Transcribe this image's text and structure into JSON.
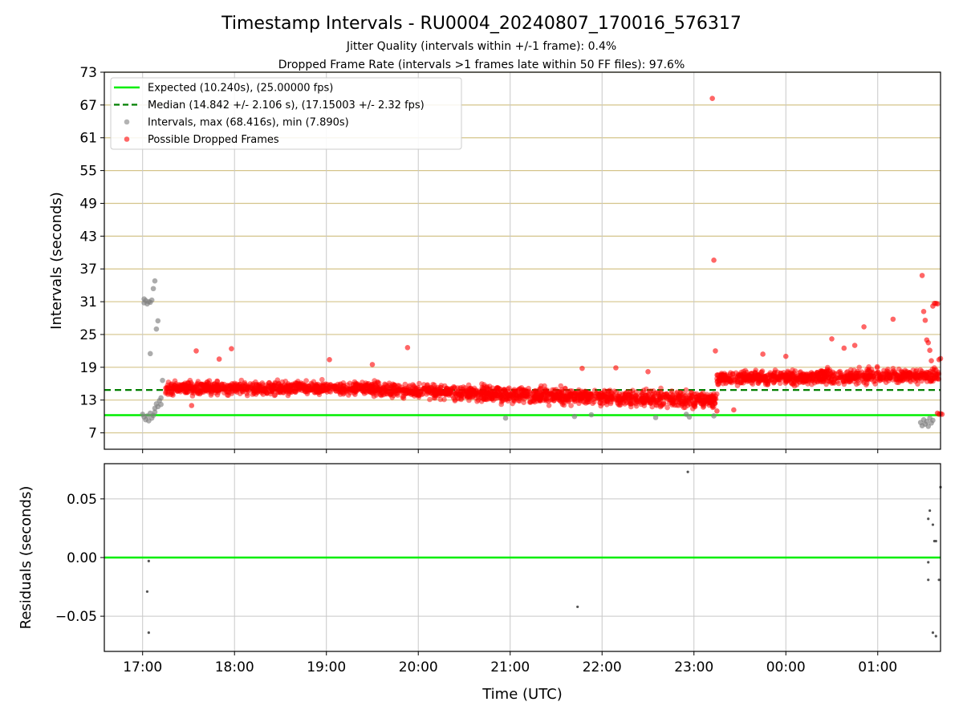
{
  "chart_data": [
    {
      "type": "scatter",
      "title": "Timestamp Intervals - RU0004_20240807_170016_576317",
      "subtitle_lines": [
        "Jitter Quality (intervals within +/-1 frame): 0.4%",
        "Dropped Frame Rate (intervals >1 frames late within 50 FF files): 97.6%"
      ],
      "ylabel": "Intervals (seconds)",
      "ylim": [
        4,
        73
      ],
      "y_ticks": [
        "7",
        "13",
        "19",
        "25",
        "31",
        "37",
        "43",
        "49",
        "55",
        "61",
        "67",
        "73"
      ],
      "grid": "horizontal",
      "legend_position": "top-left",
      "legend": [
        {
          "label": "Expected (10.240s), (25.00000 fps)",
          "kind": "solid-line",
          "color": "#00ee00"
        },
        {
          "label": "Median (14.842 +/- 2.106 s), (17.15003 +/- 2.32 fps)",
          "kind": "dashed-line",
          "color": "#007f00"
        },
        {
          "label": "Intervals, max (68.416s), min (7.890s)",
          "kind": "marker",
          "color": "#808080"
        },
        {
          "label": "Possible Dropped Frames",
          "kind": "marker",
          "color": "#ff0000"
        }
      ],
      "reference_lines": {
        "expected": 10.24,
        "median": 14.842
      },
      "colors": {
        "expected": "#00ee00",
        "median": "#007f00",
        "intervals": "#808080",
        "dropped": "#ff0000",
        "grid": "#d4c48a"
      },
      "trend_segments": [
        {
          "start": "17:15",
          "end": "19:30",
          "mean_start": 15.2,
          "mean_end": 15.2,
          "spread": 1.4
        },
        {
          "start": "19:30",
          "end": "21:00",
          "mean_start": 15.0,
          "mean_end": 14.0,
          "spread": 1.6
        },
        {
          "start": "21:00",
          "end": "23:15",
          "mean_start": 14.0,
          "mean_end": 13.0,
          "spread": 1.8
        },
        {
          "start": "23:15",
          "end": "01:40",
          "mean_start": 17.0,
          "mean_end": 17.5,
          "spread": 1.6
        }
      ],
      "intervals_points": [
        [
          "17:01",
          31.5
        ],
        [
          "17:01",
          30.8
        ],
        [
          "17:02",
          31.2
        ],
        [
          "17:03",
          30.6
        ],
        [
          "17:04",
          31.0
        ],
        [
          "17:05",
          30.9
        ],
        [
          "17:06",
          31.3
        ],
        [
          "17:07",
          33.4
        ],
        [
          "17:08",
          34.8
        ],
        [
          "17:10",
          27.5
        ],
        [
          "17:09",
          26.0
        ],
        [
          "17:05",
          21.5
        ],
        [
          "17:00",
          10.4
        ],
        [
          "17:01",
          9.9
        ],
        [
          "17:02",
          9.4
        ],
        [
          "17:03",
          10.1
        ],
        [
          "17:04",
          9.2
        ],
        [
          "17:05",
          10.6
        ],
        [
          "17:06",
          9.7
        ],
        [
          "17:07",
          10.2
        ],
        [
          "17:08",
          10.8
        ],
        [
          "17:08",
          11.5
        ],
        [
          "17:09",
          12.3
        ],
        [
          "17:10",
          11.8
        ],
        [
          "17:11",
          12.9
        ],
        [
          "17:12",
          12.2
        ],
        [
          "17:12",
          13.4
        ],
        [
          "17:13",
          16.6
        ],
        [
          "20:57",
          9.7
        ],
        [
          "21:53",
          10.3
        ],
        [
          "21:42",
          10.0
        ],
        [
          "22:35",
          9.8
        ],
        [
          "22:55",
          10.4
        ],
        [
          "22:57",
          9.9
        ],
        [
          "23:13",
          10.1
        ],
        [
          "01:28",
          8.9
        ],
        [
          "01:29",
          8.3
        ],
        [
          "01:30",
          9.4
        ],
        [
          "01:31",
          8.6
        ],
        [
          "01:32",
          9.1
        ],
        [
          "01:33",
          8.2
        ],
        [
          "01:34",
          9.7
        ],
        [
          "01:35",
          8.8
        ],
        [
          "01:36",
          9.3
        ]
      ],
      "dropped_outliers": [
        [
          "23:12",
          68.2
        ],
        [
          "23:13",
          38.6
        ],
        [
          "01:29",
          35.8
        ],
        [
          "01:30",
          29.2
        ],
        [
          "01:31",
          27.6
        ],
        [
          "01:32",
          24.0
        ],
        [
          "01:33",
          23.5
        ],
        [
          "01:34",
          22.1
        ],
        [
          "01:35",
          20.2
        ],
        [
          "01:36",
          30.2
        ],
        [
          "01:37",
          30.7
        ],
        [
          "01:38",
          30.7
        ],
        [
          "01:39",
          30.6
        ],
        [
          "01:40",
          20.4
        ],
        [
          "01:41",
          20.6
        ],
        [
          "01:38",
          18.5
        ],
        [
          "01:39",
          10.6
        ],
        [
          "01:40",
          10.4
        ],
        [
          "01:41",
          10.5
        ],
        [
          "01:42",
          10.4
        ],
        [
          "00:51",
          26.4
        ],
        [
          "01:10",
          27.8
        ],
        [
          "00:38",
          22.5
        ],
        [
          "00:30",
          24.2
        ],
        [
          "00:45",
          23.0
        ],
        [
          "17:35",
          22.0
        ],
        [
          "17:58",
          22.4
        ],
        [
          "19:53",
          22.6
        ],
        [
          "17:50",
          20.5
        ],
        [
          "19:02",
          20.4
        ],
        [
          "21:47",
          18.8
        ],
        [
          "22:09",
          18.9
        ],
        [
          "22:30",
          18.2
        ],
        [
          "23:14",
          22.0
        ],
        [
          "23:45",
          21.4
        ],
        [
          "00:00",
          21.0
        ],
        [
          "23:26",
          11.2
        ],
        [
          "23:15",
          11.0
        ],
        [
          "17:32",
          12.0
        ],
        [
          "19:30",
          19.5
        ]
      ]
    },
    {
      "type": "scatter",
      "xlabel": "Time (UTC)",
      "ylabel": "Residuals (seconds)",
      "xlim": [
        "16:35",
        "01:41"
      ],
      "x_ticks": [
        "17:00",
        "18:00",
        "19:00",
        "20:00",
        "21:00",
        "22:00",
        "23:00",
        "00:00",
        "01:00"
      ],
      "ylim": [
        -0.08,
        0.08
      ],
      "y_ticks": [
        "−0.05",
        "0.00",
        "0.05"
      ],
      "grid": "both",
      "zero_line_color": "#00ee00",
      "points": [
        [
          "17:04",
          -0.003
        ],
        [
          "17:03",
          -0.029
        ],
        [
          "17:04",
          -0.064
        ],
        [
          "21:44",
          -0.042
        ],
        [
          "22:56",
          0.073
        ],
        [
          "01:33",
          0.033
        ],
        [
          "01:34",
          0.04
        ],
        [
          "01:36",
          0.028
        ],
        [
          "01:37",
          0.014
        ],
        [
          "01:38",
          0.014
        ],
        [
          "01:33",
          -0.004
        ],
        [
          "01:33",
          -0.019
        ],
        [
          "01:40",
          -0.019
        ],
        [
          "01:36",
          -0.064
        ],
        [
          "01:38",
          -0.067
        ],
        [
          "01:41",
          0.06
        ]
      ]
    }
  ]
}
